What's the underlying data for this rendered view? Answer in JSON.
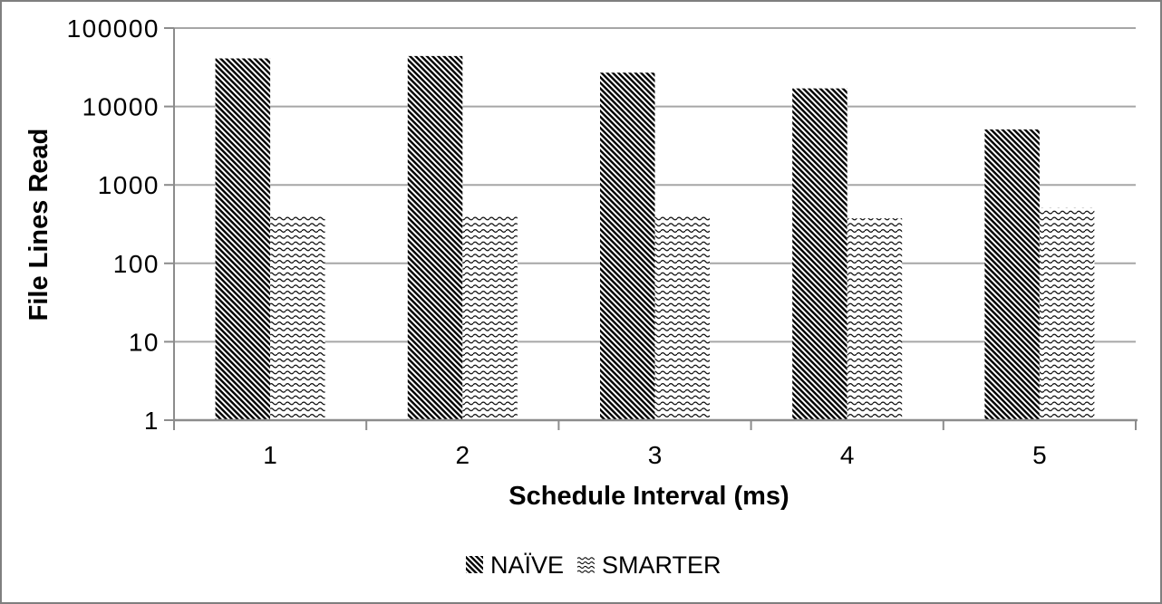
{
  "chart_data": {
    "type": "bar",
    "title": "",
    "xlabel": "Schedule Interval (ms)",
    "ylabel": "File Lines Read",
    "y_scale": "log10",
    "ylim": [
      1,
      100000
    ],
    "yticks": [
      1,
      10,
      100,
      1000,
      10000,
      100000
    ],
    "categories": [
      "1",
      "2",
      "3",
      "4",
      "5"
    ],
    "series": [
      {
        "name": "NAÏVE",
        "pattern": "diagonal-hatch",
        "values": [
          41000,
          44000,
          27000,
          17000,
          5100
        ]
      },
      {
        "name": "SMARTER",
        "pattern": "horizontal-wave",
        "values": [
          410,
          420,
          420,
          375,
          510
        ]
      }
    ],
    "grid": true,
    "legend_position": "bottom-center"
  },
  "colors": {
    "pattern_foreground": "#000000",
    "pattern_background": "#ffffff",
    "background": "#ffffff",
    "gridline": "#a6a6a6",
    "axis_line": "#8c8c8c",
    "chart_border": "#7f7f7f",
    "text": "#000000"
  }
}
